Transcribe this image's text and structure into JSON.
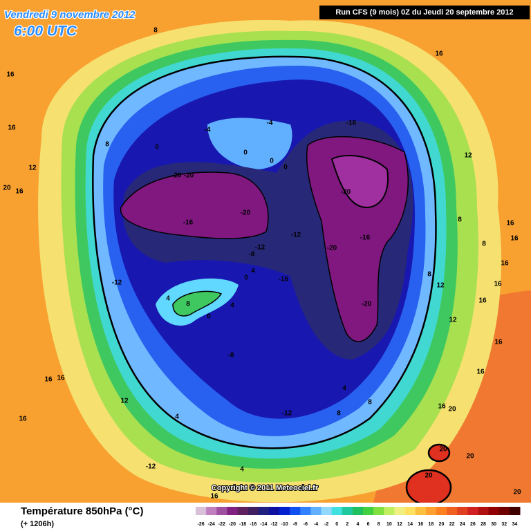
{
  "header": {
    "date": "Vendredi 9 novembre 2012",
    "time": "6:00 UTC",
    "run": "Run CFS (9 mois) 0Z du Jeudi 20 septembre 2012"
  },
  "copyright": "Copyright © 2011 Meteociel.fr",
  "legend": {
    "title": "Température 850hPa (°C)",
    "subtitle": "(+ 1206h)",
    "ticks": [
      -26,
      -24,
      -22,
      -20,
      -18,
      -16,
      -14,
      -12,
      -10,
      -8,
      -6,
      -4,
      -2,
      0,
      2,
      4,
      6,
      8,
      10,
      12,
      14,
      16,
      18,
      20,
      22,
      24,
      26,
      28,
      30,
      32,
      34
    ],
    "colors": [
      "#d8c0d8",
      "#c080c0",
      "#a050a0",
      "#802080",
      "#602060",
      "#402060",
      "#202080",
      "#1010a0",
      "#0020d0",
      "#1050f0",
      "#3080ff",
      "#60b0ff",
      "#90d8ff",
      "#40e0e0",
      "#20c8a0",
      "#20c060",
      "#40d040",
      "#80e040",
      "#c0f060",
      "#f0f080",
      "#ffe060",
      "#ffc040",
      "#ffa030",
      "#ff8020",
      "#f06020",
      "#e04020",
      "#d02020",
      "#b01010",
      "#900000",
      "#700000",
      "#400000"
    ]
  },
  "contour_labels": [
    8,
    16,
    16,
    16,
    12,
    20,
    16,
    -4,
    -4,
    -16,
    0,
    8,
    0,
    0,
    0,
    12,
    -20,
    -20,
    -20,
    -20,
    -16,
    8,
    16,
    16,
    8,
    -12,
    -12,
    -8,
    -20,
    -16,
    16,
    4,
    -16,
    0,
    -12,
    8,
    12,
    16,
    4,
    8,
    4,
    -20,
    16,
    0,
    12,
    -8,
    16,
    16,
    16,
    16,
    12,
    4,
    8,
    16,
    20,
    4,
    16,
    -12,
    8,
    20,
    20,
    -12,
    4,
    20,
    16,
    20
  ]
}
